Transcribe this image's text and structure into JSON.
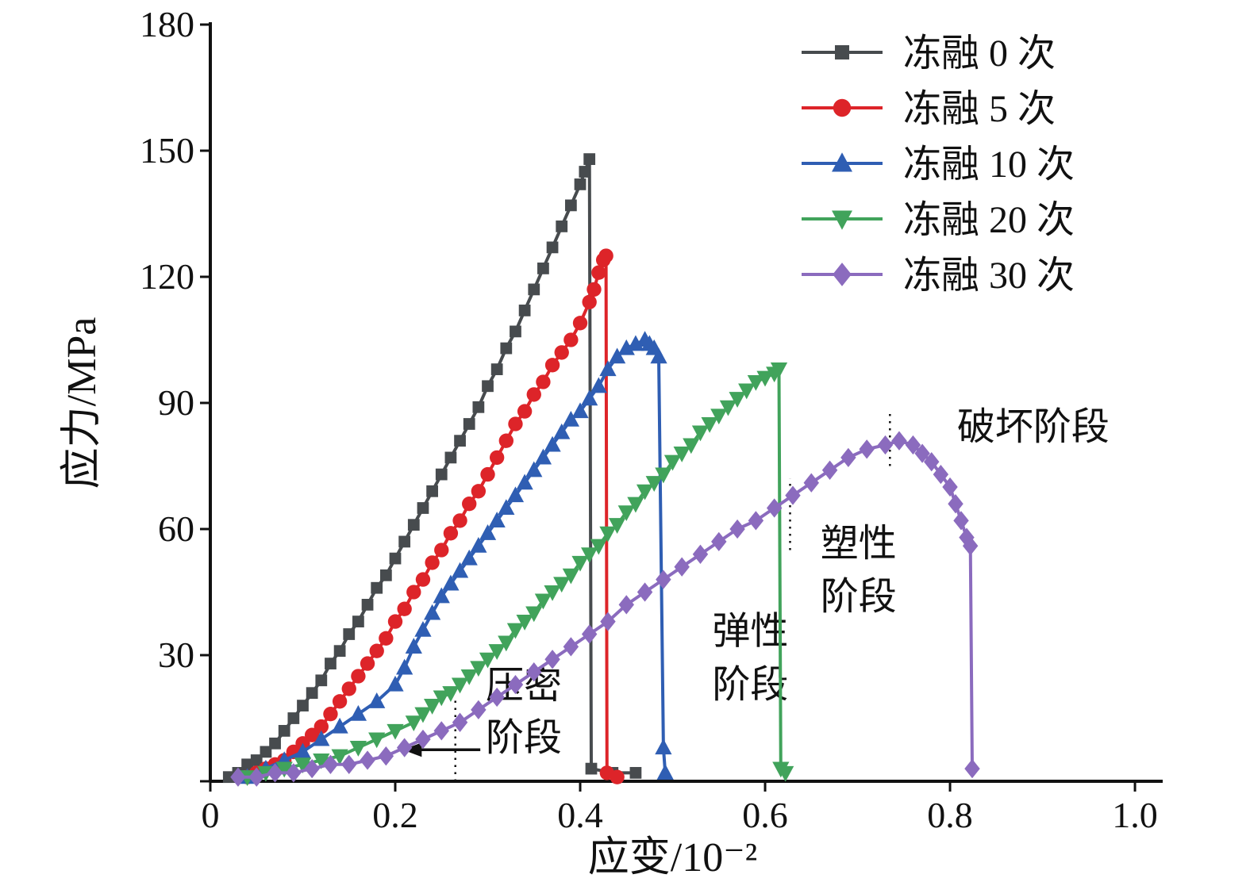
{
  "figure": {
    "background": "#ffffff"
  },
  "chart_data": {
    "type": "line",
    "title": "",
    "xlabel": "应变/10⁻²",
    "ylabel": "应力/MPa",
    "xlim": [
      0,
      1.03
    ],
    "ylim": [
      0,
      180
    ],
    "grid": false,
    "legend_position": "top-right",
    "axis_color": "#111111",
    "text_color": "#111111",
    "xticks": {
      "values": [
        0,
        0.2,
        0.4,
        0.6,
        0.8,
        1.0
      ],
      "labels": [
        "0",
        "0.2",
        "0.4",
        "0.6",
        "0.8",
        "1.0"
      ]
    },
    "yticks": {
      "values": [
        0,
        30,
        60,
        90,
        120,
        150,
        180
      ],
      "labels": [
        "",
        "30",
        "60",
        "90",
        "120",
        "150",
        "180"
      ]
    },
    "series": [
      {
        "id": "freeze-thaw-0",
        "name": "冻融 0 次",
        "marker": "square",
        "color": "#474b4e",
        "points": [
          [
            0.02,
            1
          ],
          [
            0.03,
            2
          ],
          [
            0.04,
            4
          ],
          [
            0.05,
            5
          ],
          [
            0.06,
            7
          ],
          [
            0.07,
            9
          ],
          [
            0.08,
            12
          ],
          [
            0.09,
            15
          ],
          [
            0.1,
            18
          ],
          [
            0.11,
            21
          ],
          [
            0.12,
            24
          ],
          [
            0.13,
            28
          ],
          [
            0.14,
            31
          ],
          [
            0.15,
            35
          ],
          [
            0.16,
            38
          ],
          [
            0.17,
            42
          ],
          [
            0.18,
            46
          ],
          [
            0.19,
            49
          ],
          [
            0.2,
            53
          ],
          [
            0.21,
            57
          ],
          [
            0.22,
            61
          ],
          [
            0.23,
            65
          ],
          [
            0.24,
            69
          ],
          [
            0.25,
            73
          ],
          [
            0.26,
            77
          ],
          [
            0.27,
            81
          ],
          [
            0.28,
            85
          ],
          [
            0.29,
            89
          ],
          [
            0.3,
            94
          ],
          [
            0.31,
            98
          ],
          [
            0.32,
            103
          ],
          [
            0.33,
            107
          ],
          [
            0.34,
            112
          ],
          [
            0.35,
            117
          ],
          [
            0.36,
            122
          ],
          [
            0.37,
            127
          ],
          [
            0.38,
            132
          ],
          [
            0.39,
            137
          ],
          [
            0.4,
            142
          ],
          [
            0.405,
            145
          ],
          [
            0.41,
            148
          ],
          [
            0.412,
            3
          ],
          [
            0.435,
            2
          ],
          [
            0.46,
            2
          ]
        ]
      },
      {
        "id": "freeze-thaw-5",
        "name": "冻融 5 次",
        "marker": "circle",
        "color": "#dd2429",
        "points": [
          [
            0.04,
            1
          ],
          [
            0.05,
            2
          ],
          [
            0.06,
            3
          ],
          [
            0.07,
            4
          ],
          [
            0.08,
            5
          ],
          [
            0.09,
            7
          ],
          [
            0.1,
            9
          ],
          [
            0.11,
            11
          ],
          [
            0.12,
            13
          ],
          [
            0.13,
            16
          ],
          [
            0.14,
            19
          ],
          [
            0.15,
            22
          ],
          [
            0.16,
            25
          ],
          [
            0.17,
            28
          ],
          [
            0.18,
            31
          ],
          [
            0.19,
            34
          ],
          [
            0.2,
            38
          ],
          [
            0.21,
            41
          ],
          [
            0.22,
            45
          ],
          [
            0.23,
            48
          ],
          [
            0.24,
            52
          ],
          [
            0.25,
            55
          ],
          [
            0.26,
            59
          ],
          [
            0.27,
            62
          ],
          [
            0.28,
            66
          ],
          [
            0.29,
            69
          ],
          [
            0.3,
            73
          ],
          [
            0.31,
            77
          ],
          [
            0.32,
            81
          ],
          [
            0.33,
            85
          ],
          [
            0.34,
            88
          ],
          [
            0.35,
            92
          ],
          [
            0.36,
            95
          ],
          [
            0.37,
            99
          ],
          [
            0.38,
            102
          ],
          [
            0.39,
            105
          ],
          [
            0.4,
            109
          ],
          [
            0.41,
            114
          ],
          [
            0.415,
            117
          ],
          [
            0.42,
            121
          ],
          [
            0.425,
            124
          ],
          [
            0.428,
            125
          ],
          [
            0.429,
            2
          ],
          [
            0.44,
            1
          ]
        ]
      },
      {
        "id": "freeze-thaw-10",
        "name": "冻融 10 次",
        "marker": "triangle-up",
        "color": "#2f5eb3",
        "points": [
          [
            0.04,
            1
          ],
          [
            0.06,
            3
          ],
          [
            0.08,
            5
          ],
          [
            0.1,
            7
          ],
          [
            0.12,
            10
          ],
          [
            0.14,
            13
          ],
          [
            0.16,
            16
          ],
          [
            0.18,
            19
          ],
          [
            0.2,
            23
          ],
          [
            0.21,
            27
          ],
          [
            0.22,
            32
          ],
          [
            0.23,
            36
          ],
          [
            0.24,
            40
          ],
          [
            0.25,
            44
          ],
          [
            0.26,
            47
          ],
          [
            0.27,
            50
          ],
          [
            0.28,
            53
          ],
          [
            0.29,
            56
          ],
          [
            0.3,
            59
          ],
          [
            0.31,
            62
          ],
          [
            0.32,
            65
          ],
          [
            0.33,
            68
          ],
          [
            0.34,
            71
          ],
          [
            0.35,
            74
          ],
          [
            0.36,
            77
          ],
          [
            0.37,
            80
          ],
          [
            0.38,
            83
          ],
          [
            0.39,
            86
          ],
          [
            0.4,
            88
          ],
          [
            0.41,
            91
          ],
          [
            0.42,
            94
          ],
          [
            0.43,
            98
          ],
          [
            0.44,
            101
          ],
          [
            0.45,
            103
          ],
          [
            0.46,
            104
          ],
          [
            0.47,
            105
          ],
          [
            0.475,
            104
          ],
          [
            0.48,
            103
          ],
          [
            0.485,
            101
          ],
          [
            0.49,
            8
          ],
          [
            0.492,
            2
          ]
        ]
      },
      {
        "id": "freeze-thaw-20",
        "name": "冻融 20 次",
        "marker": "triangle-down",
        "color": "#41a35b",
        "points": [
          [
            0.04,
            1
          ],
          [
            0.06,
            2
          ],
          [
            0.08,
            3
          ],
          [
            0.1,
            4
          ],
          [
            0.12,
            5
          ],
          [
            0.14,
            6
          ],
          [
            0.16,
            8
          ],
          [
            0.18,
            10
          ],
          [
            0.2,
            12
          ],
          [
            0.22,
            14
          ],
          [
            0.23,
            16
          ],
          [
            0.24,
            18
          ],
          [
            0.25,
            20
          ],
          [
            0.26,
            21
          ],
          [
            0.27,
            23
          ],
          [
            0.28,
            25
          ],
          [
            0.29,
            27
          ],
          [
            0.3,
            29
          ],
          [
            0.31,
            31
          ],
          [
            0.32,
            33
          ],
          [
            0.33,
            36
          ],
          [
            0.34,
            38
          ],
          [
            0.35,
            40
          ],
          [
            0.36,
            43
          ],
          [
            0.37,
            45
          ],
          [
            0.38,
            47
          ],
          [
            0.39,
            49
          ],
          [
            0.4,
            52
          ],
          [
            0.41,
            54
          ],
          [
            0.42,
            56
          ],
          [
            0.43,
            59
          ],
          [
            0.44,
            61
          ],
          [
            0.45,
            64
          ],
          [
            0.46,
            66
          ],
          [
            0.47,
            69
          ],
          [
            0.48,
            71
          ],
          [
            0.49,
            73
          ],
          [
            0.5,
            76
          ],
          [
            0.51,
            78
          ],
          [
            0.52,
            80
          ],
          [
            0.53,
            83
          ],
          [
            0.54,
            85
          ],
          [
            0.55,
            87
          ],
          [
            0.56,
            89
          ],
          [
            0.57,
            91
          ],
          [
            0.58,
            93
          ],
          [
            0.59,
            95
          ],
          [
            0.6,
            96
          ],
          [
            0.61,
            97
          ],
          [
            0.615,
            98
          ],
          [
            0.617,
            3
          ],
          [
            0.622,
            2
          ]
        ]
      },
      {
        "id": "freeze-thaw-30",
        "name": "冻融 30 次",
        "marker": "diamond",
        "color": "#8b6bbe",
        "points": [
          [
            0.03,
            1
          ],
          [
            0.05,
            1
          ],
          [
            0.07,
            2
          ],
          [
            0.09,
            2
          ],
          [
            0.11,
            3
          ],
          [
            0.13,
            4
          ],
          [
            0.15,
            4
          ],
          [
            0.17,
            5
          ],
          [
            0.19,
            6
          ],
          [
            0.21,
            8
          ],
          [
            0.23,
            10
          ],
          [
            0.25,
            12
          ],
          [
            0.27,
            14
          ],
          [
            0.29,
            17
          ],
          [
            0.31,
            20
          ],
          [
            0.33,
            23
          ],
          [
            0.35,
            26
          ],
          [
            0.37,
            29
          ],
          [
            0.39,
            32
          ],
          [
            0.41,
            35
          ],
          [
            0.43,
            38
          ],
          [
            0.45,
            42
          ],
          [
            0.47,
            45
          ],
          [
            0.49,
            48
          ],
          [
            0.51,
            51
          ],
          [
            0.53,
            54
          ],
          [
            0.55,
            57
          ],
          [
            0.57,
            60
          ],
          [
            0.59,
            62
          ],
          [
            0.61,
            65
          ],
          [
            0.63,
            68
          ],
          [
            0.65,
            71
          ],
          [
            0.67,
            74
          ],
          [
            0.69,
            77
          ],
          [
            0.71,
            79
          ],
          [
            0.73,
            80
          ],
          [
            0.745,
            81
          ],
          [
            0.76,
            80
          ],
          [
            0.77,
            78
          ],
          [
            0.78,
            76
          ],
          [
            0.79,
            73
          ],
          [
            0.8,
            70
          ],
          [
            0.806,
            66
          ],
          [
            0.812,
            62
          ],
          [
            0.818,
            58
          ],
          [
            0.822,
            56
          ],
          [
            0.824,
            3
          ]
        ]
      }
    ],
    "annotations": [
      {
        "id": "compaction-stage",
        "x": 0.339,
        "lines": [
          {
            "text": "压密",
            "y": 22.8
          },
          {
            "text": "阶段",
            "y": 10.4
          }
        ]
      },
      {
        "id": "elastic-stage",
        "x": 0.584,
        "lines": [
          {
            "text": "弹性",
            "y": 35.8
          },
          {
            "text": "阶段",
            "y": 23.0
          }
        ]
      },
      {
        "id": "plastic-stage",
        "x": 0.701,
        "lines": [
          {
            "text": "塑性",
            "y": 56.6
          },
          {
            "text": "阶段",
            "y": 44.0
          }
        ]
      },
      {
        "id": "failure-stage",
        "x": 0.89,
        "lines": [
          {
            "text": "破坏阶段",
            "y": 84.3
          }
        ]
      }
    ],
    "guide_lines": [
      {
        "x": 0.265,
        "y1": 0,
        "y2": 20
      },
      {
        "x": 0.627,
        "y1": 55,
        "y2": 72
      },
      {
        "x": 0.735,
        "y1": 75,
        "y2": 88.5
      }
    ],
    "arrow": {
      "y": 7.5,
      "x_from": 0.292,
      "x_to": 0.208
    }
  }
}
